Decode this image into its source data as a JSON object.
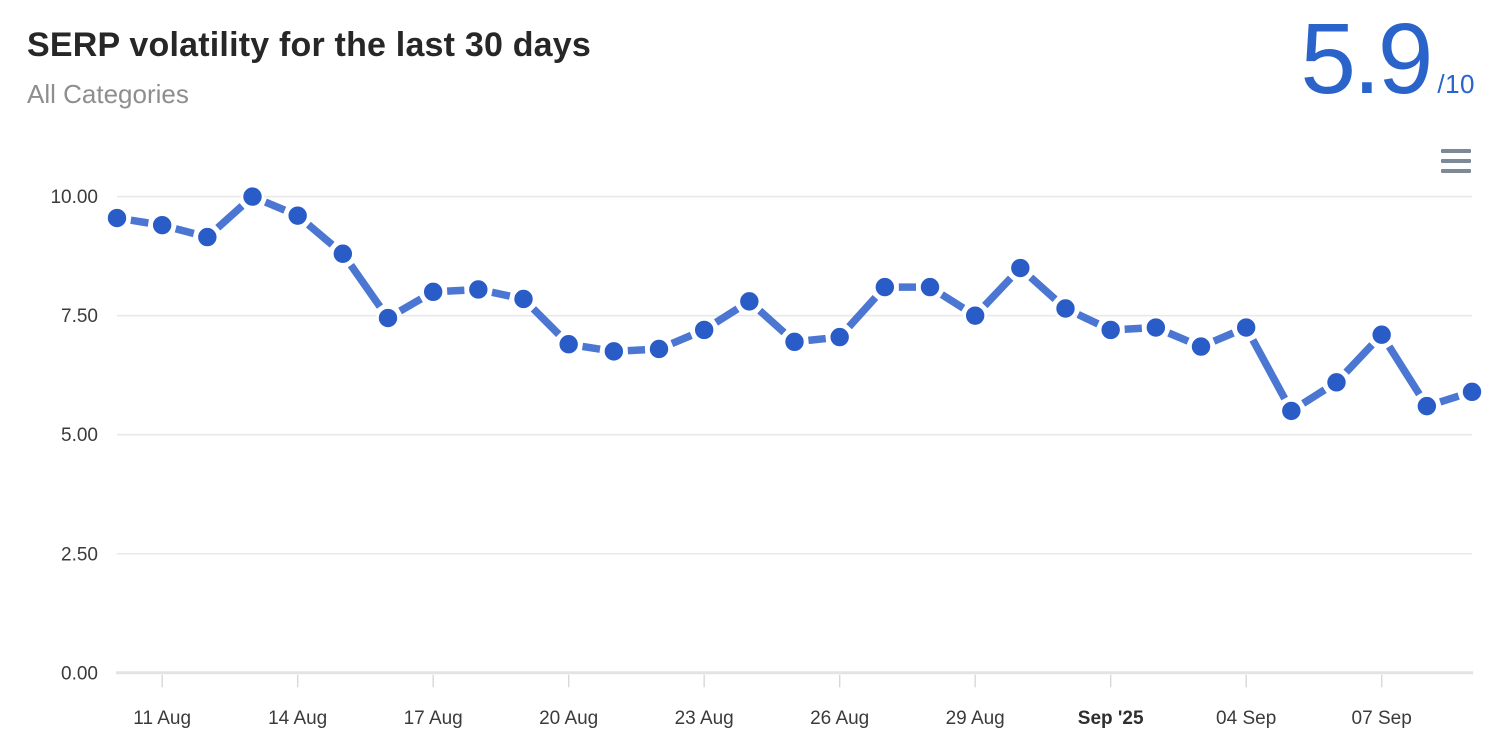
{
  "colors": {
    "accent_blue": "#2a63c9",
    "marker": "#2a5cc8",
    "line": "#4b76d2",
    "marker_halo": "#ffffff",
    "grid": "#e9e9e9",
    "axis": "#e3e3e3",
    "tick": "#d8d8d8",
    "axis_label": "#3b3b3b",
    "axis_label_bold": "#2f2f2f",
    "title": "#272727",
    "subtitle": "#8e8e8e",
    "menu_icon": "#7d8996"
  },
  "icons": {
    "menu": "hamburger-menu"
  },
  "chart_data": {
    "type": "line",
    "line_style": "dashed-with-markers",
    "title": "SERP volatility for the last 30 days",
    "subtitle": "All Categories",
    "score": "5.9",
    "score_suffix": "/10",
    "grid": true,
    "legend": false,
    "ylim": [
      0,
      10
    ],
    "x": [
      "10 Aug",
      "11 Aug",
      "12 Aug",
      "13 Aug",
      "14 Aug",
      "15 Aug",
      "16 Aug",
      "17 Aug",
      "18 Aug",
      "19 Aug",
      "20 Aug",
      "21 Aug",
      "22 Aug",
      "23 Aug",
      "24 Aug",
      "25 Aug",
      "26 Aug",
      "27 Aug",
      "28 Aug",
      "29 Aug",
      "30 Aug",
      "31 Aug",
      "01 Sep",
      "02 Sep",
      "03 Sep",
      "04 Sep",
      "05 Sep",
      "06 Sep",
      "07 Sep",
      "08 Sep",
      "09 Sep"
    ],
    "values": [
      9.55,
      9.4,
      9.15,
      10,
      9.6,
      8.8,
      7.45,
      8.0,
      8.05,
      7.85,
      6.9,
      6.75,
      6.8,
      7.2,
      7.8,
      6.95,
      7.05,
      8.1,
      8.1,
      7.5,
      8.5,
      7.65,
      7.2,
      7.25,
      6.85,
      7.25,
      5.5,
      6.1,
      7.1,
      5.6,
      5.9
    ],
    "y_ticks": [
      {
        "value": 10,
        "label": "10.00"
      },
      {
        "value": 7.5,
        "label": "7.50"
      },
      {
        "value": 5,
        "label": "5.00"
      },
      {
        "value": 2.5,
        "label": "2.50"
      },
      {
        "value": 0,
        "label": "0.00"
      }
    ],
    "x_ticks": [
      {
        "index": 1,
        "label": "11 Aug"
      },
      {
        "index": 4,
        "label": "14 Aug"
      },
      {
        "index": 7,
        "label": "17 Aug"
      },
      {
        "index": 10,
        "label": "20 Aug"
      },
      {
        "index": 13,
        "label": "23 Aug"
      },
      {
        "index": 16,
        "label": "26 Aug"
      },
      {
        "index": 19,
        "label": "29 Aug"
      },
      {
        "index": 22,
        "label": "Sep '25",
        "bold": true
      },
      {
        "index": 25,
        "label": "04 Sep"
      },
      {
        "index": 28,
        "label": "07 Sep"
      }
    ]
  }
}
